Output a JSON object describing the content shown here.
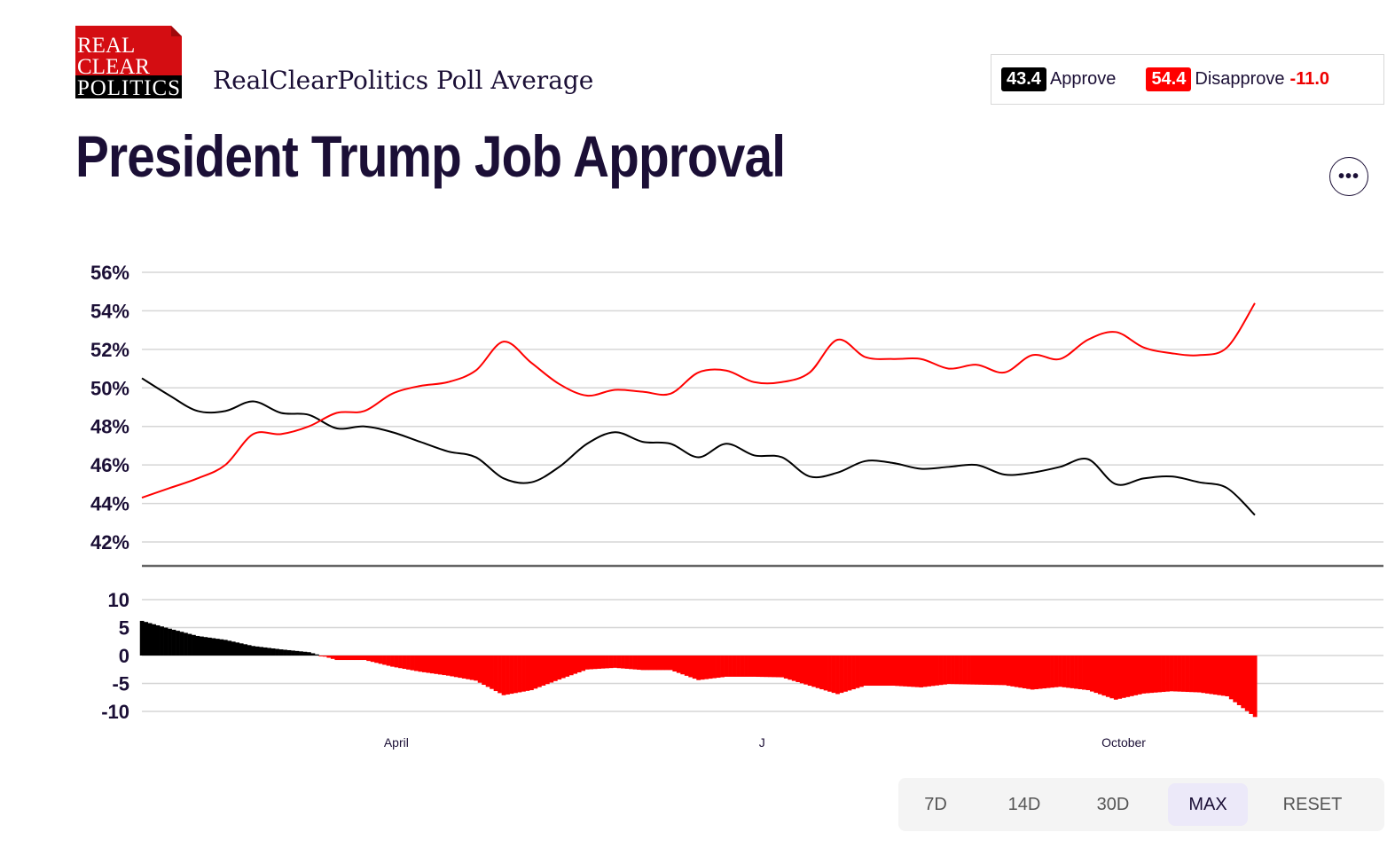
{
  "header": {
    "logo_text": [
      "REAL",
      "CLEAR",
      "POLITICS"
    ],
    "subtitle": "RealClearPolitics Poll Average",
    "title": "President Trump Job Approval",
    "more_icon": "ellipsis-icon"
  },
  "legend": {
    "approve_value": "43.4",
    "approve_label": "Approve",
    "disapprove_value": "54.4",
    "disapprove_label": "Disapprove",
    "spread": "-11.0"
  },
  "colors": {
    "approve": "#000000",
    "disapprove": "#ff0000",
    "text": "#1b0f36"
  },
  "range_buttons": [
    {
      "label": "7D",
      "active": false
    },
    {
      "label": "14D",
      "active": false
    },
    {
      "label": "30D",
      "active": false
    },
    {
      "label": "MAX",
      "active": true
    },
    {
      "label": "RESET",
      "active": false
    }
  ],
  "chart_data": [
    {
      "type": "line",
      "ylim": [
        42,
        56
      ],
      "yticks": [
        "56%",
        "54%",
        "52%",
        "50%",
        "48%",
        "46%",
        "44%",
        "42%"
      ],
      "ytick_values": [
        56,
        54,
        52,
        50,
        48,
        46,
        44,
        42
      ],
      "grid": true,
      "xticks": [
        {
          "label": "April",
          "date": "2025-04-01"
        },
        {
          "label": "J",
          "date": "2025-07-02"
        },
        {
          "label": "October",
          "date": "2025-10-01"
        }
      ],
      "xrange": [
        "2025-01-27",
        "2025-11-03"
      ],
      "x": [
        "2025-01-27",
        "2025-02-03",
        "2025-02-10",
        "2025-02-17",
        "2025-02-24",
        "2025-03-03",
        "2025-03-10",
        "2025-03-17",
        "2025-03-24",
        "2025-03-31",
        "2025-04-07",
        "2025-04-14",
        "2025-04-21",
        "2025-04-28",
        "2025-05-05",
        "2025-05-12",
        "2025-05-19",
        "2025-05-26",
        "2025-06-02",
        "2025-06-09",
        "2025-06-16",
        "2025-06-23",
        "2025-06-30",
        "2025-07-07",
        "2025-07-14",
        "2025-07-21",
        "2025-07-28",
        "2025-08-04",
        "2025-08-11",
        "2025-08-18",
        "2025-08-25",
        "2025-09-01",
        "2025-09-08",
        "2025-09-15",
        "2025-09-22",
        "2025-09-29",
        "2025-10-06",
        "2025-10-13",
        "2025-10-20",
        "2025-10-27",
        "2025-11-03"
      ],
      "series": [
        {
          "name": "Approve",
          "color": "#000000",
          "values": [
            50.5,
            49.6,
            48.8,
            48.8,
            49.3,
            48.7,
            48.6,
            47.9,
            48.0,
            47.7,
            47.2,
            46.7,
            46.4,
            45.3,
            45.1,
            45.9,
            47.1,
            47.7,
            47.2,
            47.1,
            46.4,
            47.1,
            46.5,
            46.4,
            45.4,
            45.6,
            46.2,
            46.1,
            45.8,
            45.9,
            46.0,
            45.5,
            45.6,
            45.9,
            46.3,
            45.0,
            45.3,
            45.4,
            45.1,
            44.8,
            43.4
          ]
        },
        {
          "name": "Disapprove",
          "color": "#ff0000",
          "values": [
            44.3,
            44.8,
            45.3,
            46.0,
            47.6,
            47.6,
            48.0,
            48.7,
            48.8,
            49.7,
            50.1,
            50.3,
            50.9,
            52.4,
            51.3,
            50.2,
            49.6,
            49.9,
            49.8,
            49.7,
            50.8,
            50.9,
            50.3,
            50.3,
            50.8,
            52.5,
            51.6,
            51.5,
            51.5,
            51.0,
            51.2,
            50.8,
            51.7,
            51.5,
            52.5,
            52.9,
            52.1,
            51.8,
            51.7,
            52.1,
            54.4
          ]
        }
      ]
    },
    {
      "type": "bar",
      "description_of_values": "spread = Approve - Disapprove",
      "ylim": [
        -11,
        10
      ],
      "yticks": [
        "10",
        "5",
        "0",
        "-5",
        "-10"
      ],
      "ytick_values": [
        10,
        5,
        0,
        -5,
        -10
      ],
      "grid": true,
      "positive_color": "#000000",
      "negative_color": "#ff0000"
    }
  ]
}
